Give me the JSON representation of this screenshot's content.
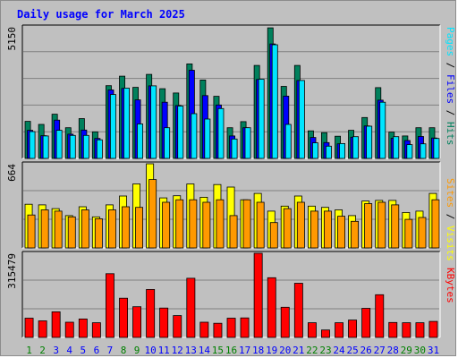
{
  "chart_data": {
    "type": "bar",
    "title": "Daily usage for March 2025",
    "categories": [
      "1",
      "2",
      "3",
      "4",
      "5",
      "6",
      "7",
      "8",
      "9",
      "10",
      "11",
      "12",
      "13",
      "14",
      "15",
      "16",
      "17",
      "18",
      "19",
      "20",
      "21",
      "22",
      "23",
      "24",
      "25",
      "26",
      "27",
      "28",
      "29",
      "30",
      "31"
    ],
    "weekend_categories": [
      "1",
      "2",
      "8",
      "9",
      "15",
      "16",
      "22",
      "23",
      "29",
      "30"
    ],
    "panels": [
      {
        "id": "top",
        "max_label": "5150",
        "ylim": [
          0,
          5150
        ],
        "right_labels": [
          "Pages",
          "Files",
          "Hits"
        ],
        "series": [
          {
            "name": "Hits",
            "color": "#00805c",
            "values": [
              1450,
              1330,
              1730,
              1200,
              1560,
              1040,
              2850,
              3220,
              2780,
              3290,
              2730,
              2560,
              3700,
              3070,
              2430,
              1200,
              1440,
              3640,
              5110,
              2820,
              3640,
              1080,
              1010,
              870,
              1100,
              1600,
              2770,
              1030,
              880,
              1200,
              1200
            ]
          },
          {
            "name": "Files",
            "color": "#0000ff",
            "values": [
              1100,
              890,
              1500,
              950,
              1110,
              780,
              2680,
              2740,
              2290,
              2840,
              2200,
              2070,
              3450,
              2460,
              2090,
              880,
              1200,
              3090,
              4480,
              2440,
              3050,
              820,
              620,
              570,
              830,
              1270,
              2280,
              790,
              700,
              860,
              800
            ]
          },
          {
            "name": "Pages",
            "color": "#00e5ff",
            "values": [
              1050,
              880,
              1100,
              900,
              900,
              730,
              2500,
              2750,
              1350,
              2840,
              1200,
              2050,
              1750,
              1540,
              1950,
              760,
              1200,
              3100,
              4450,
              1330,
              3050,
              610,
              480,
              580,
              850,
              1260,
              2200,
              850,
              540,
              570,
              780
            ]
          }
        ]
      },
      {
        "id": "middle",
        "max_label": "664",
        "ylim": [
          0,
          664
        ],
        "right_labels": [
          "Sites",
          "Visits"
        ],
        "series": [
          {
            "name": "Visits",
            "color": "#ffff00",
            "values": [
              345,
              340,
              310,
              255,
              325,
              245,
              340,
              410,
              505,
              664,
              395,
              412,
              505,
              400,
              500,
              480,
              380,
              430,
              290,
              330,
              410,
              330,
              320,
              300,
              255,
              370,
              375,
              375,
              280,
              290,
              430
            ]
          },
          {
            "name": "Sites",
            "color": "#ff9900",
            "values": [
              260,
              300,
              290,
              245,
              300,
              230,
              300,
              325,
              320,
              540,
              360,
              380,
              380,
              360,
              380,
              255,
              380,
              360,
              200,
              310,
              360,
              290,
              290,
              250,
              210,
              350,
              360,
              340,
              225,
              240,
              380
            ]
          }
        ]
      },
      {
        "id": "bottom",
        "max_label": "315479",
        "ylim": [
          0,
          315479
        ],
        "right_labels": [
          "KBytes"
        ],
        "series": [
          {
            "name": "KBytes",
            "color": "#ff0000",
            "values": [
              72000,
              62000,
              96000,
              57000,
              69000,
              55000,
              239000,
              147000,
              115000,
              180000,
              110000,
              82000,
              222000,
              57000,
              53000,
              72000,
              73000,
              315479,
              224000,
              113000,
              203000,
              55000,
              28000,
              55000,
              65000,
              109000,
              160000,
              56000,
              55000,
              55000,
              60000
            ]
          }
        ]
      }
    ]
  },
  "colors": {
    "title": "#0000ff",
    "weekday_label": "#0000ff",
    "weekend_label": "#008000",
    "background": "#c0c0c0",
    "grid": "#808080"
  }
}
